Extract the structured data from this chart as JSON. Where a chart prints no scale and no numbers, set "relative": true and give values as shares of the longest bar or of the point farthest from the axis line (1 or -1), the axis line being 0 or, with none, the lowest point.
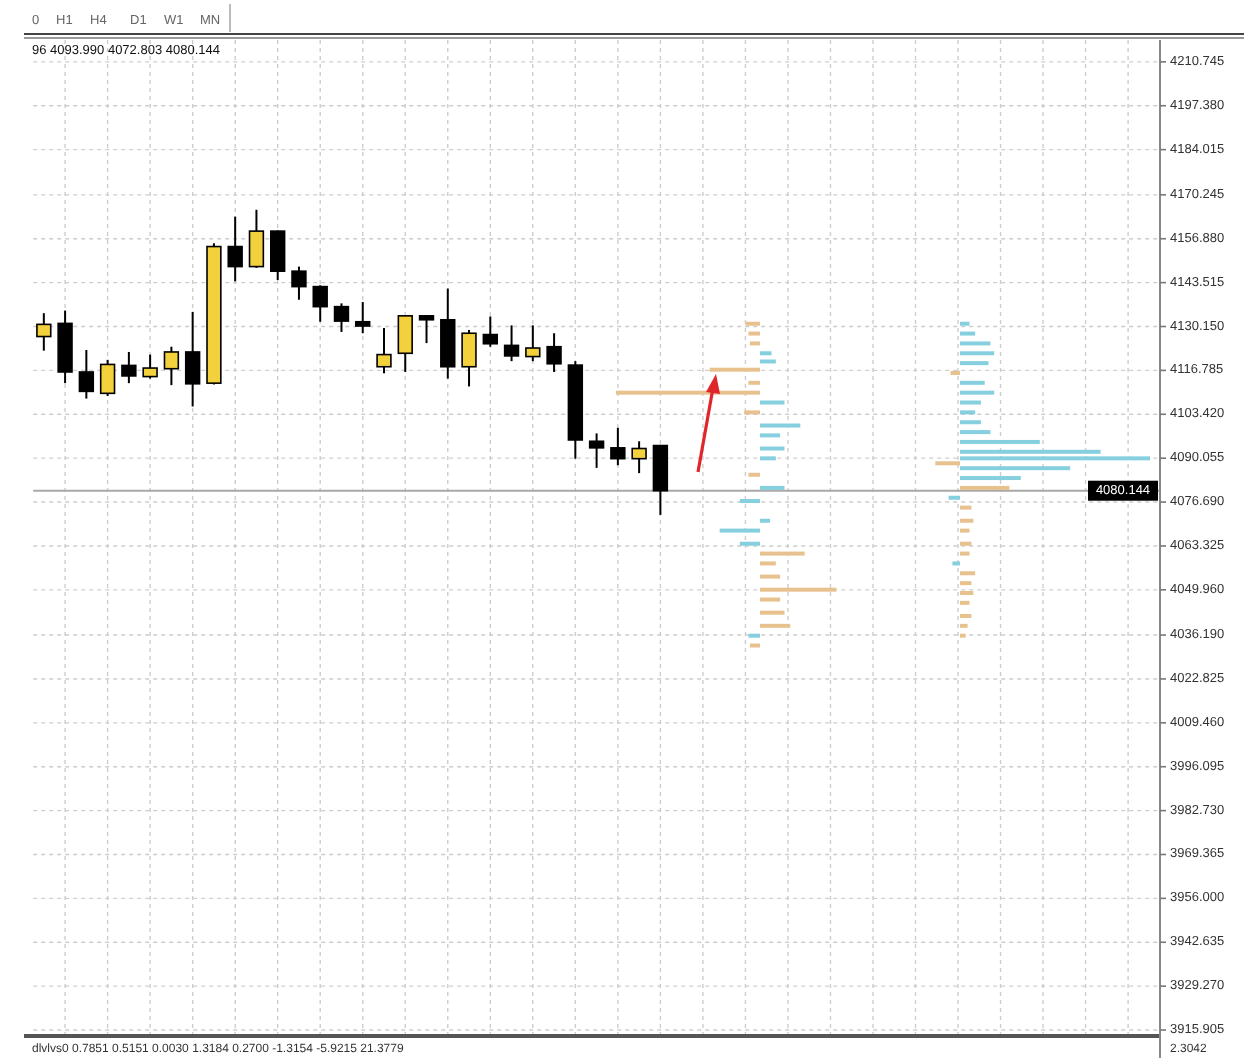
{
  "chart_data": [
    {
      "type": "candlestick",
      "categories": [
        null,
        null,
        null,
        null,
        null,
        null,
        null,
        null,
        null,
        null,
        null,
        null,
        null,
        null,
        null,
        null,
        null,
        null,
        null,
        null,
        null,
        null,
        null,
        null,
        null,
        null,
        null,
        null,
        null,
        null,
        null,
        null,
        null,
        null,
        null,
        null,
        null,
        null,
        null,
        null,
        null,
        null,
        null,
        null,
        null,
        null,
        null,
        null,
        null,
        null,
        null,
        null,
        null
      ],
      "ohlc": [
        [
          4127.1,
          4134.2,
          4122.8,
          4130.8
        ],
        [
          4131.1,
          4135.0,
          4112.9,
          4116.3
        ],
        [
          4116.3,
          4123.0,
          4108.2,
          4110.4
        ],
        [
          4109.8,
          4120.0,
          4109.0,
          4118.6
        ],
        [
          4118.3,
          4122.4,
          4112.9,
          4115.1
        ],
        [
          4114.9,
          4121.6,
          4114.3,
          4117.5
        ],
        [
          4117.3,
          4124.0,
          4112.3,
          4122.4
        ],
        [
          4122.4,
          4134.6,
          4105.8,
          4112.7
        ],
        [
          4112.9,
          4155.5,
          4112.5,
          4154.5
        ],
        [
          4154.5,
          4163.6,
          4143.9,
          4148.4
        ],
        [
          4148.4,
          4165.7,
          4148.0,
          4159.2
        ],
        [
          4159.2,
          4159.4,
          4144.3,
          4147.0
        ],
        [
          4147.0,
          4148.4,
          4138.3,
          4142.3
        ],
        [
          4142.3,
          4142.7,
          4131.6,
          4136.2
        ],
        [
          4136.2,
          4137.2,
          4128.5,
          4131.8
        ],
        [
          4131.6,
          4137.6,
          4128.1,
          4130.3
        ],
        [
          4117.9,
          4129.7,
          4115.9,
          4121.6
        ],
        [
          4122.0,
          4133.6,
          4116.3,
          4133.4
        ],
        [
          4133.4,
          4133.6,
          4125.1,
          4132.2
        ],
        [
          4132.2,
          4141.7,
          4114.3,
          4117.9
        ],
        [
          4117.9,
          4129.1,
          4111.9,
          4128.1
        ],
        [
          4127.7,
          4133.2,
          4124.0,
          4124.9
        ],
        [
          4124.4,
          4130.5,
          4119.6,
          4121.2
        ],
        [
          4121.0,
          4130.5,
          4119.6,
          4123.6
        ],
        [
          4124.0,
          4128.1,
          4116.3,
          4118.8
        ],
        [
          4118.4,
          4119.6,
          4089.9,
          4095.6
        ],
        [
          4095.2,
          4097.6,
          4087.1,
          4093.2
        ],
        [
          4093.2,
          4099.3,
          4087.9,
          4089.9
        ],
        [
          4089.9,
          4095.2,
          4085.5,
          4093.0
        ],
        [
          4093.9,
          4093.99,
          4072.803,
          4080.144
        ],
        null,
        null,
        null,
        null,
        null,
        null,
        null,
        null,
        null,
        null,
        null,
        null,
        null,
        null,
        null,
        null,
        null,
        null,
        null,
        null,
        null,
        null,
        null
      ],
      "colors": [
        "#f2d13c",
        "#000000",
        "#000000",
        "#f2d13c",
        "#000000",
        "#f2d13c",
        "#f2d13c",
        "#000000",
        "#f2d13c",
        "#000000",
        "#f2d13c",
        "#000000",
        "#000000",
        "#000000",
        "#000000",
        "#000000",
        "#f2d13c",
        "#f2d13c",
        "#000000",
        "#000000",
        "#f2d13c",
        "#000000",
        "#000000",
        "#f2d13c",
        "#000000",
        "#000000",
        "#000000",
        "#000000",
        "#f2d13c",
        "#000000",
        null,
        null,
        null,
        null,
        null,
        null,
        null,
        null,
        null,
        null,
        null,
        null,
        null,
        null,
        null,
        null,
        null,
        null,
        null,
        null,
        null,
        null,
        null
      ],
      "ylim": [
        3914.7,
        4217.4
      ],
      "yticks": [
        4210.745,
        {
          "value": 4197.38,
          "label": "4197.380"
        },
        4184.015,
        4170.245,
        {
          "value": 4156.88,
          "label": "4156.880"
        },
        4143.515,
        {
          "value": 4130.15,
          "label": "4130.150"
        },
        4116.785,
        {
          "value": 4103.42,
          "label": "4103.420"
        },
        4090.055,
        {
          "value": 4076.69,
          "label": "4076.690"
        },
        4063.325,
        {
          "value": 4049.96,
          "label": "4049.960"
        },
        {
          "value": 4036.19,
          "label": "4036.190"
        },
        4022.825,
        {
          "value": 4009.46,
          "label": "4009.460"
        },
        3996.095,
        {
          "value": 3982.73,
          "label": "3982.730"
        },
        3969.365,
        {
          "value": 3956,
          "label": "3956.000"
        },
        3942.635,
        {
          "value": 3929.27,
          "label": "3929.270"
        },
        3915.905
      ],
      "grid": true,
      "ref_lines": [
        {
          "axis": "y",
          "value": 4080.144,
          "label": "4080.144",
          "color": "#a9a9a9"
        }
      ],
      "annotations": [
        "0",
        "H1",
        "H4",
        "D1",
        "W1",
        "MN",
        "96 4093.990 4072.803 4080.144",
        "dlvlvs0 0.7851 0.5151 0.0030 1.3184 0.2700 -1.3154 -5.9215 21.3779",
        "2.3042"
      ]
    },
    {
      "type": "bar",
      "orientation": "horizontal",
      "relative": true,
      "tick_labels": false,
      "ylim": [
        3914.7,
        4217.4
      ],
      "x": [
        4131,
        4128,
        4125,
        4122,
        4119.5,
        4117,
        4113,
        4110,
        4107,
        4104,
        4100,
        4097,
        4093,
        4090,
        4085,
        4081,
        4077,
        4071,
        4068,
        4064,
        4061,
        4058,
        4054,
        4050,
        4047,
        4043,
        4039,
        4036,
        4033
      ],
      "values": [
        -0.1,
        -0.08,
        -0.07,
        0.08,
        0.11,
        -0.35,
        -0.08,
        -1,
        0.17,
        -0.11,
        0.28,
        0.14,
        0.17,
        0.11,
        -0.08,
        0.17,
        -0.14,
        0.07,
        -0.28,
        -0.14,
        0.31,
        0.11,
        0.14,
        0.53,
        0.14,
        0.17,
        0.21,
        -0.08,
        -0.07
      ],
      "colors": [
        "#e8c28e",
        "#e8c28e",
        "#e8c28e",
        "#86cfdf",
        "#86cfdf",
        "#e8c28e",
        "#e8c28e",
        "#e8c28e",
        "#86cfdf",
        "#e8c28e",
        "#86cfdf",
        "#86cfdf",
        "#86cfdf",
        "#86cfdf",
        "#e8c28e",
        "#86cfdf",
        "#86cfdf",
        "#86cfdf",
        "#86cfdf",
        "#86cfdf",
        "#e8c28e",
        "#e8c28e",
        "#e8c28e",
        "#e8c28e",
        "#e8c28e",
        "#e8c28e",
        "#e8c28e",
        "#86cfdf",
        "#e8c28e"
      ]
    },
    {
      "type": "bar",
      "orientation": "horizontal",
      "relative": true,
      "tick_labels": false,
      "ylim": [
        3914.7,
        4217.4
      ],
      "x": [
        4131,
        4128,
        4125,
        4122,
        4119,
        4116,
        4113,
        4110,
        4107,
        4104,
        4101,
        4098,
        4095,
        4092,
        4090,
        4088.5,
        4087,
        4084,
        4081,
        4078,
        4075,
        4071,
        4068,
        4064,
        4061,
        4058,
        4055,
        4052,
        4049,
        4046,
        4042,
        4039,
        4036
      ],
      "values": [
        0.05,
        0.08,
        0.16,
        0.18,
        0.15,
        -0.05,
        0.13,
        0.18,
        0.11,
        0.08,
        0.11,
        0.16,
        0.42,
        0.74,
        1,
        -0.13,
        0.58,
        0.32,
        0.26,
        -0.06,
        0.06,
        0.07,
        0.05,
        0.06,
        0.05,
        -0.04,
        0.08,
        0.06,
        0.07,
        0.05,
        0.06,
        0.04,
        0.03
      ],
      "colors": [
        "#86cfdf",
        "#86cfdf",
        "#86cfdf",
        "#86cfdf",
        "#86cfdf",
        "#e8c28e",
        "#86cfdf",
        "#86cfdf",
        "#86cfdf",
        "#86cfdf",
        "#86cfdf",
        "#86cfdf",
        "#86cfdf",
        "#86cfdf",
        "#86cfdf",
        "#e8c28e",
        "#86cfdf",
        "#86cfdf",
        "#e8c28e",
        "#86cfdf",
        "#e8c28e",
        "#e8c28e",
        "#e8c28e",
        "#e8c28e",
        "#e8c28e",
        "#86cfdf",
        "#e8c28e",
        "#e8c28e",
        "#e8c28e",
        "#e8c28e",
        "#e8c28e",
        "#e8c28e",
        "#e8c28e"
      ]
    }
  ]
}
